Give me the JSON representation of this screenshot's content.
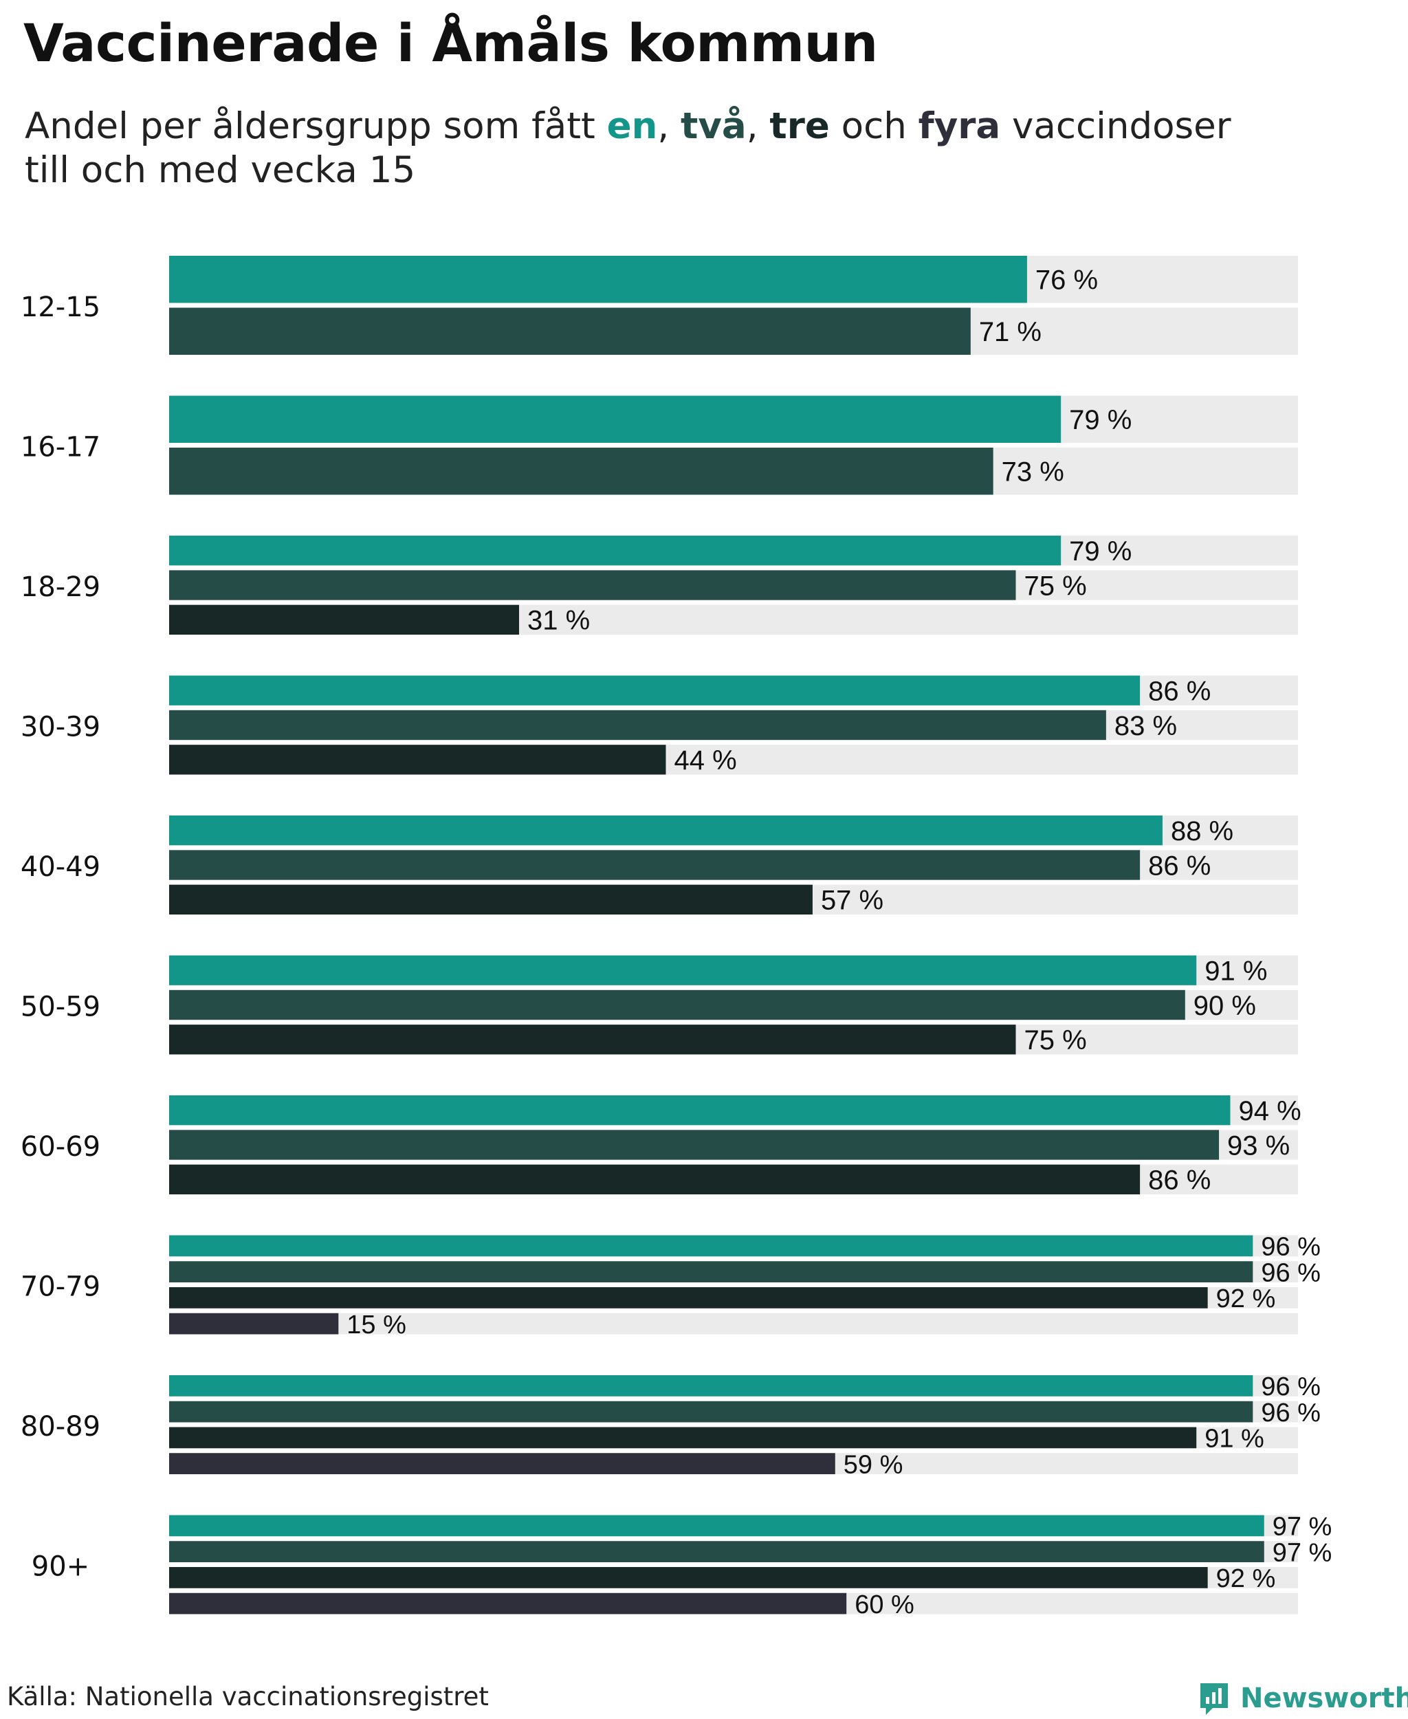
{
  "title": "Vaccinerade i Åmåls kommun",
  "subtitle": {
    "prefix": "Andel per åldersgrupp som fått ",
    "dose1": "en",
    "sep1": ", ",
    "dose2": "två",
    "sep2": ", ",
    "dose3": "tre",
    "mid": " och ",
    "dose4": "fyra",
    "suffix": " vaccindoser",
    "line2": "till och med vecka 15"
  },
  "source": "Källa: Nationella vaccinationsregistret",
  "brand": "Newsworthy",
  "colors": {
    "dose1": "#13968a",
    "dose2": "#264c48",
    "dose3": "#182826",
    "dose4": "#2f2f3c",
    "track": "#ebebeb",
    "label": "#111111"
  },
  "chart_data": {
    "type": "bar",
    "orientation": "horizontal",
    "xlim": [
      0,
      100
    ],
    "value_suffix": " %",
    "series": [
      {
        "name": "en",
        "color_key": "dose1"
      },
      {
        "name": "två",
        "color_key": "dose2"
      },
      {
        "name": "tre",
        "color_key": "dose3"
      },
      {
        "name": "fyra",
        "color_key": "dose4"
      }
    ],
    "categories": [
      "12-15",
      "16-17",
      "18-29",
      "30-39",
      "40-49",
      "50-59",
      "60-69",
      "70-79",
      "80-89",
      "90+"
    ],
    "groups": [
      {
        "category": "12-15",
        "values": [
          76,
          71
        ]
      },
      {
        "category": "16-17",
        "values": [
          79,
          73
        ]
      },
      {
        "category": "18-29",
        "values": [
          79,
          75,
          31
        ]
      },
      {
        "category": "30-39",
        "values": [
          86,
          83,
          44
        ]
      },
      {
        "category": "40-49",
        "values": [
          88,
          86,
          57
        ]
      },
      {
        "category": "50-59",
        "values": [
          91,
          90,
          75
        ]
      },
      {
        "category": "60-69",
        "values": [
          94,
          93,
          86
        ]
      },
      {
        "category": "70-79",
        "values": [
          96,
          96,
          92,
          15
        ]
      },
      {
        "category": "80-89",
        "values": [
          96,
          96,
          91,
          59
        ]
      },
      {
        "category": "90+",
        "values": [
          97,
          97,
          92,
          60
        ]
      }
    ]
  }
}
